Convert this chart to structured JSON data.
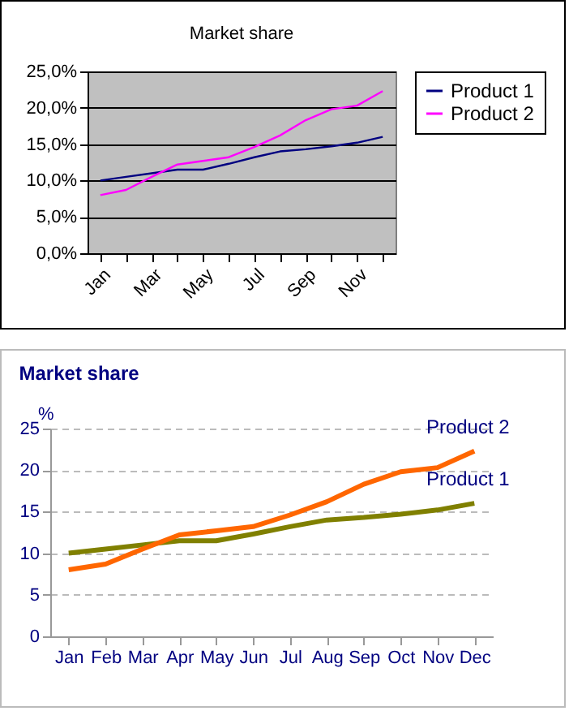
{
  "chart_data": [
    {
      "type": "line",
      "title": "Market share",
      "categories": [
        "Jan",
        null,
        "Mar",
        null,
        "May",
        null,
        "Jul",
        null,
        "Sep",
        null,
        "Nov",
        null
      ],
      "series": [
        {
          "name": "Product 1",
          "color": "#000080",
          "values": [
            10,
            10.5,
            11,
            11.5,
            11.5,
            12.3,
            13.2,
            14,
            14.3,
            14.7,
            15.2,
            16
          ]
        },
        {
          "name": "Product 2",
          "color": "#ff00ff",
          "values": [
            8,
            8.7,
            10.5,
            12.2,
            12.7,
            13.2,
            14.6,
            16.2,
            18.3,
            19.8,
            20.3,
            22.3
          ]
        }
      ],
      "ylim": [
        0,
        25
      ],
      "yticks": [
        {
          "value": 0,
          "label": "0,0%"
        },
        {
          "value": 5,
          "label": "5,0%"
        },
        {
          "value": 10,
          "label": "10,0%"
        },
        {
          "value": 15,
          "label": "15,0%"
        },
        {
          "value": 20,
          "label": "20,0%"
        },
        {
          "value": 25,
          "label": "25,0%"
        }
      ],
      "grid": "y",
      "legend": "right"
    },
    {
      "type": "line",
      "title": "Market share",
      "ylabel": "%",
      "categories": [
        "Jan",
        "Feb",
        "Mar",
        "Apr",
        "May",
        "Jun",
        "Jul",
        "Aug",
        "Sep",
        "Oct",
        "Nov",
        "Dec"
      ],
      "series": [
        {
          "name": "Product 1",
          "color": "#808000",
          "values": [
            10,
            10.5,
            11,
            11.5,
            11.5,
            12.3,
            13.2,
            14,
            14.3,
            14.7,
            15.2,
            16
          ]
        },
        {
          "name": "Product 2",
          "color": "#ff6600",
          "values": [
            8,
            8.7,
            10.5,
            12.2,
            12.7,
            13.2,
            14.6,
            16.2,
            18.3,
            19.8,
            20.3,
            22.3
          ]
        }
      ],
      "ylim": [
        0,
        25
      ],
      "yticks": [
        0,
        5,
        10,
        15,
        20,
        25
      ],
      "grid": "y",
      "legend": false
    }
  ]
}
